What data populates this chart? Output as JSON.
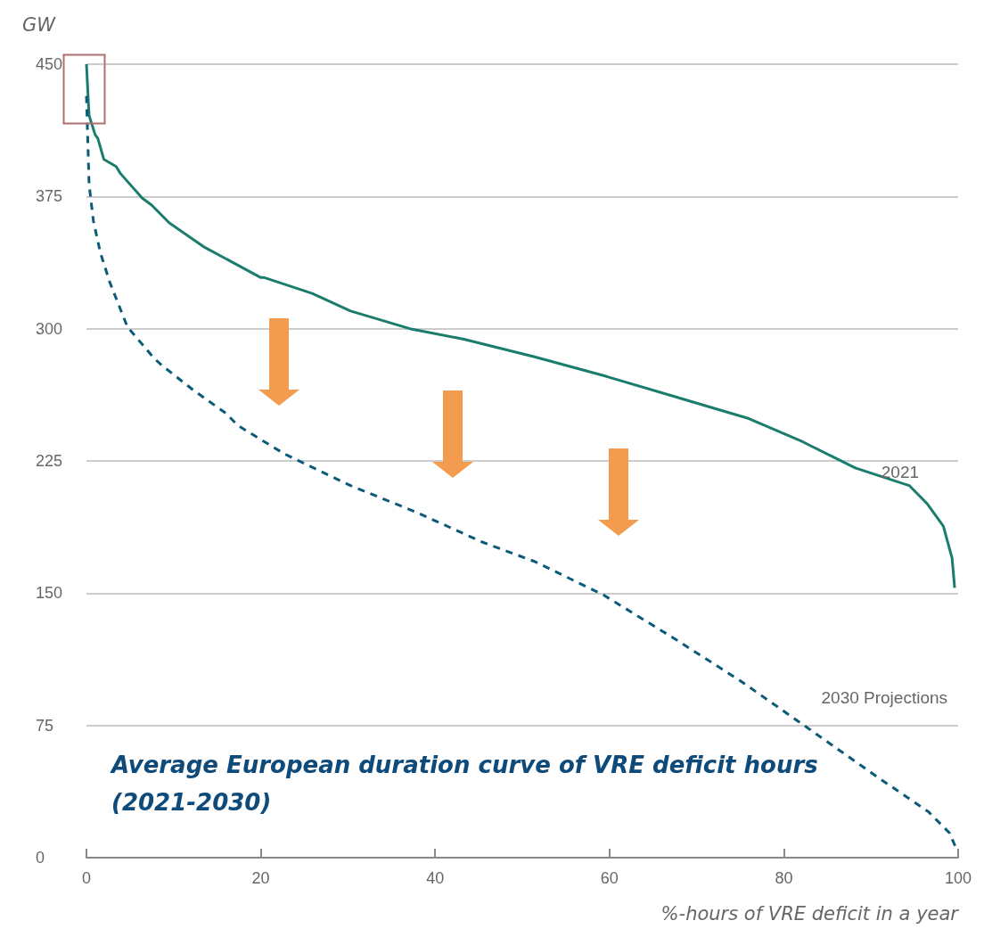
{
  "chart_data": {
    "type": "line",
    "title": "Average European duration curve of VRE deficit hours (2021-2030)",
    "ylabel": "GW",
    "xlabel": "%-hours of VRE deficit in a year",
    "xlim": [
      0,
      100
    ],
    "xticks": [
      0,
      20,
      40,
      60,
      80,
      100
    ],
    "ylim": [
      0,
      450
    ],
    "yticks": [
      0,
      75,
      150,
      225,
      300,
      375,
      450
    ],
    "grid": "y",
    "marker": "none",
    "series": [
      {
        "name": "2021",
        "color": "#1a7d6c",
        "line_style": "solid",
        "x": [
          0,
          0.3,
          1,
          1.3,
          2,
          3.4,
          3.9,
          6.4,
          7.5,
          9.5,
          13.3,
          13.6,
          20,
          20.4,
          25.9,
          30.3,
          31,
          37.1,
          43.3,
          51.4,
          59.6,
          67.8,
          76,
          82.1,
          88.2,
          94.4,
          96.4,
          98.3,
          99.3,
          99.6
        ],
        "values": [
          450,
          421,
          410,
          408,
          396,
          392,
          388,
          374,
          370,
          360,
          347,
          346,
          329,
          329,
          320,
          310,
          309,
          300,
          294,
          284,
          273,
          261,
          249,
          236,
          221,
          211,
          201,
          188,
          170,
          153
        ]
      },
      {
        "name": "2030 Projections",
        "color": "#0b5a78",
        "line_style": "dashed",
        "x": [
          0,
          0.3,
          0.8,
          1.6,
          2.7,
          4.7,
          7.8,
          8.7,
          12.3,
          16,
          17.4,
          22.7,
          30.3,
          37.8,
          45.4,
          51.4,
          59.3,
          67.2,
          75.1,
          82.9,
          90.8,
          96.6,
          99,
          99.8
        ],
        "values": [
          432,
          382,
          361,
          343,
          326,
          301,
          283,
          279,
          265,
          252,
          245,
          229,
          211,
          196,
          179,
          168,
          149,
          125,
          100,
          73,
          45.5,
          26,
          14,
          5
        ]
      }
    ]
  }
}
